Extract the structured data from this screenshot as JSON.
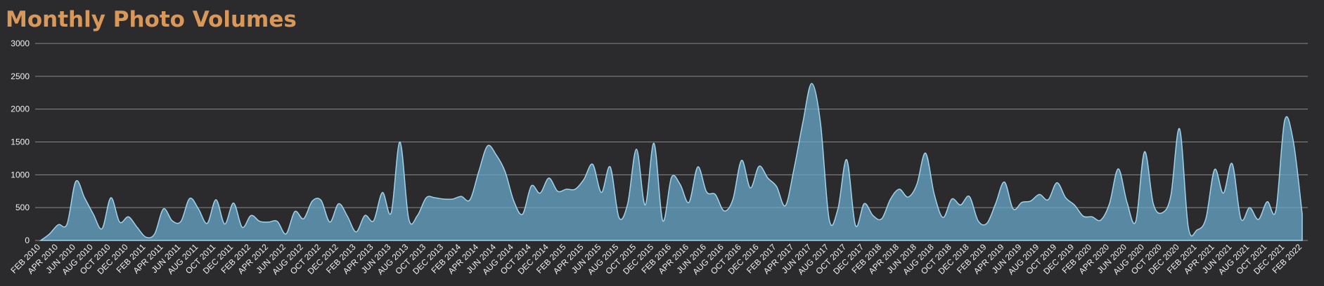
{
  "chart_data": {
    "type": "area",
    "title": "Monthly Photo Volumes",
    "categories": [
      "FEB 2010",
      null,
      "APR 2010",
      null,
      "JUN 2010",
      null,
      "AUG 2010",
      null,
      "OCT 2010",
      null,
      "DEC 2010",
      null,
      "FEB 2011",
      null,
      "APR 2011",
      null,
      "JUN 2011",
      null,
      "AUG 2011",
      null,
      "OCT 2011",
      null,
      "DEC 2011",
      null,
      "FEB 2012",
      null,
      "APR 2012",
      null,
      "JUN 2012",
      null,
      "AUG 2012",
      null,
      "OCT 2012",
      null,
      "DEC 2012",
      null,
      "FEB 2013",
      null,
      "APR 2013",
      null,
      "JUN 2013",
      null,
      "AUG 2013",
      null,
      "OCT 2013",
      null,
      "DEC 2013",
      null,
      "FEB 2014",
      null,
      "APR 2014",
      null,
      "JUN 2014",
      null,
      "AUG 2014",
      null,
      "OCT 2014",
      null,
      "DEC 2014",
      null,
      "FEB 2015",
      null,
      "APR 2015",
      null,
      "JUN 2015",
      null,
      "AUG 2015",
      null,
      "OCT 2015",
      null,
      "DEC 2015",
      null,
      "FEB 2016",
      null,
      "APR 2016",
      null,
      "JUN 2016",
      null,
      "AUG 2016",
      null,
      "OCT 2016",
      null,
      "DEC 2016",
      null,
      "FEB 2017",
      null,
      "APR 2017",
      null,
      "JUN 2017",
      null,
      "AUG 2017",
      null,
      "OCT 2017",
      null,
      "DEC 2017",
      null,
      "FEB 2018",
      null,
      "APR 2018",
      null,
      "JUN 2018",
      null,
      "AUG 2018",
      null,
      "OCT 2018",
      null,
      "DEC 2018",
      null,
      "FEB 2019",
      null,
      "APR 2019",
      null,
      "JUN 2019",
      null,
      "AUG 2019",
      null,
      "OCT 2019",
      null,
      "DEC 2019",
      null,
      "FEB 2020",
      null,
      "APR 2020",
      null,
      "JUN 2020",
      null,
      "AUG 2020",
      null,
      "OCT 2020",
      null,
      "DEC 2020",
      null,
      "FEB 2021",
      null,
      "APR 2021",
      null,
      "JUN 2021",
      null,
      "AUG 2021",
      null,
      "OCT 2021",
      null,
      "DEC 2021",
      null,
      "FEB 2022"
    ],
    "values": [
      0,
      100,
      240,
      250,
      900,
      650,
      400,
      180,
      650,
      280,
      360,
      200,
      50,
      100,
      480,
      300,
      290,
      640,
      480,
      260,
      620,
      250,
      570,
      200,
      380,
      290,
      280,
      290,
      100,
      440,
      330,
      600,
      610,
      280,
      560,
      370,
      130,
      380,
      300,
      730,
      420,
      1500,
      330,
      380,
      650,
      650,
      630,
      630,
      670,
      620,
      1050,
      1440,
      1300,
      1050,
      600,
      400,
      830,
      720,
      950,
      750,
      780,
      780,
      930,
      1160,
      730,
      1120,
      350,
      560,
      1390,
      540,
      1480,
      300,
      960,
      850,
      580,
      1120,
      740,
      700,
      450,
      620,
      1220,
      800,
      1130,
      950,
      820,
      530,
      1100,
      1800,
      2390,
      1800,
      320,
      480,
      1230,
      230,
      560,
      380,
      330,
      630,
      780,
      660,
      850,
      1330,
      700,
      350,
      630,
      540,
      670,
      300,
      260,
      560,
      890,
      480,
      580,
      600,
      700,
      620,
      880,
      650,
      540,
      370,
      360,
      310,
      560,
      1090,
      580,
      290,
      1350,
      560,
      420,
      680,
      1700,
      200,
      160,
      330,
      1080,
      720,
      1170,
      330,
      500,
      320,
      590,
      460,
      1830,
      1500,
      400
    ],
    "color": "#6aa9c9",
    "ylim": [
      0,
      3000
    ],
    "yticks": [
      0,
      500,
      1000,
      1500,
      2000,
      2500,
      3000
    ],
    "grid": true
  }
}
